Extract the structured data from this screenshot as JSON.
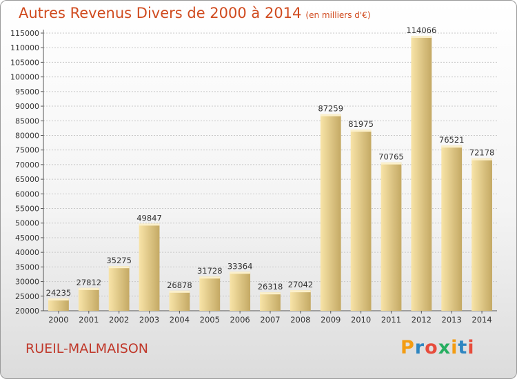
{
  "title": "Autres Revenus Divers de 2000 à 2014",
  "subtitle": "(en milliers d'€)",
  "city": "RUEIL-MALMAISON",
  "logo": "Proxiti",
  "colors": {
    "bar_light": "#f8e4a8",
    "bar_dark": "#c4a964",
    "title": "#d04b1f",
    "city": "#c0392b",
    "grid": "#c8c8c8"
  },
  "chart_data": {
    "type": "bar",
    "categories": [
      "2000",
      "2001",
      "2002",
      "2003",
      "2004",
      "2005",
      "2006",
      "2007",
      "2008",
      "2009",
      "2010",
      "2011",
      "2012",
      "2013",
      "2014"
    ],
    "values": [
      24235,
      27812,
      35275,
      49847,
      26878,
      31728,
      33364,
      26318,
      27042,
      87259,
      81975,
      70765,
      114066,
      76521,
      72178
    ],
    "ylim": [
      20000,
      115000
    ],
    "ytick_step": 5000,
    "grid": true,
    "data_labels": true
  }
}
